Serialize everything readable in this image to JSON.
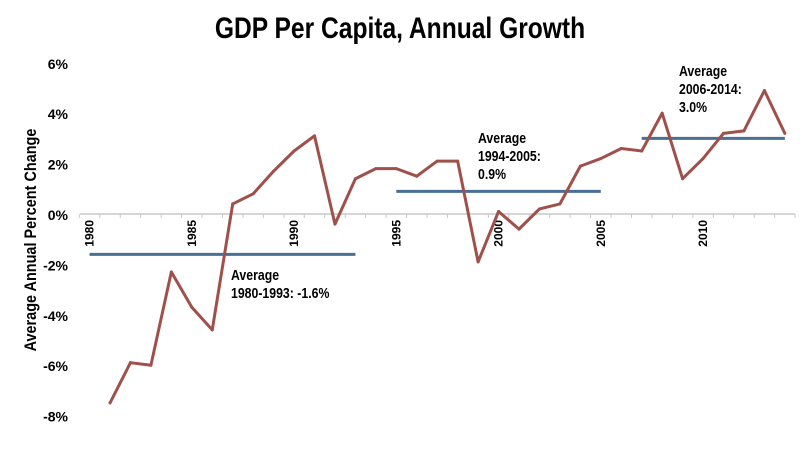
{
  "chart_data": {
    "type": "line",
    "title": "GDP Per Capita, Annual Growth",
    "xlabel": "",
    "ylabel": "Average Annual Percent Change",
    "ylim": [
      -8,
      6
    ],
    "y_ticks": [
      "6%",
      "4%",
      "2%",
      "0%",
      "-2%",
      "-4%",
      "-6%",
      "-8%"
    ],
    "y_tick_values": [
      6,
      4,
      2,
      0,
      -2,
      -4,
      -6,
      -8
    ],
    "x_tick_labels": [
      "1980",
      "1985",
      "1990",
      "1995",
      "2000",
      "2005",
      "2010"
    ],
    "x_tick_years": [
      1980,
      1985,
      1990,
      1995,
      2000,
      2005,
      2010
    ],
    "grid": false,
    "line_color": "#a0504a",
    "average_color": "#4a6f96",
    "x": [
      1981,
      1982,
      1983,
      1984,
      1985,
      1986,
      1987,
      1988,
      1989,
      1990,
      1991,
      1992,
      1993,
      1994,
      1995,
      1996,
      1997,
      1998,
      1999,
      2000,
      2001,
      2002,
      2003,
      2004,
      2005,
      2006,
      2007,
      2008,
      2009,
      2010,
      2011,
      2012,
      2013,
      2014
    ],
    "values": [
      -7.5,
      -5.9,
      -6.0,
      -2.3,
      -3.7,
      -4.6,
      0.4,
      0.8,
      1.7,
      2.5,
      3.1,
      -0.4,
      1.4,
      1.8,
      1.8,
      1.5,
      2.1,
      2.1,
      -1.9,
      0.1,
      -0.6,
      0.2,
      0.4,
      1.9,
      2.2,
      2.6,
      2.5,
      4.0,
      1.4,
      2.2,
      3.2,
      3.3,
      4.9,
      3.2
    ],
    "averages": [
      {
        "from": 1980,
        "to": 1993,
        "value": -1.6,
        "label_lines": [
          "Average",
          "1980-1993: -1.6%"
        ]
      },
      {
        "from": 1995,
        "to": 2005,
        "value": 0.9,
        "label_lines": [
          "Average",
          "1994-2005:",
          "0.9%"
        ]
      },
      {
        "from": 2007,
        "to": 2014,
        "value": 3.0,
        "label_lines": [
          "Average",
          "2006-2014:",
          "3.0%"
        ]
      }
    ]
  }
}
